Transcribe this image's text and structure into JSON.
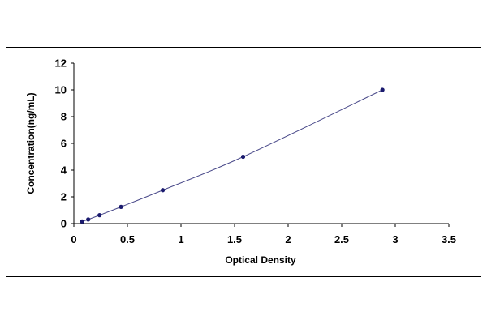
{
  "chart_data": {
    "type": "scatter",
    "title": "",
    "xlabel": "Optical Density",
    "ylabel": "Concentration(ng/mL)",
    "xlim": [
      0,
      3.5
    ],
    "ylim": [
      0,
      12
    ],
    "x_ticks": [
      "0",
      "0.5",
      "1",
      "1.5",
      "2",
      "2.5",
      "3",
      "3.5"
    ],
    "y_ticks": [
      "0",
      "2",
      "4",
      "6",
      "8",
      "10",
      "12"
    ],
    "grid": false,
    "legend": "none",
    "series": [
      {
        "points": [
          {
            "x": 0.077,
            "y": 0.16
          },
          {
            "x": 0.134,
            "y": 0.31
          },
          {
            "x": 0.24,
            "y": 0.63
          },
          {
            "x": 0.44,
            "y": 1.25
          },
          {
            "x": 0.83,
            "y": 2.5
          },
          {
            "x": 1.58,
            "y": 5.0
          },
          {
            "x": 2.88,
            "y": 10.0
          }
        ],
        "marker_color": "#1a1a6e",
        "fit_line_color": "#4a4a8a"
      }
    ]
  }
}
